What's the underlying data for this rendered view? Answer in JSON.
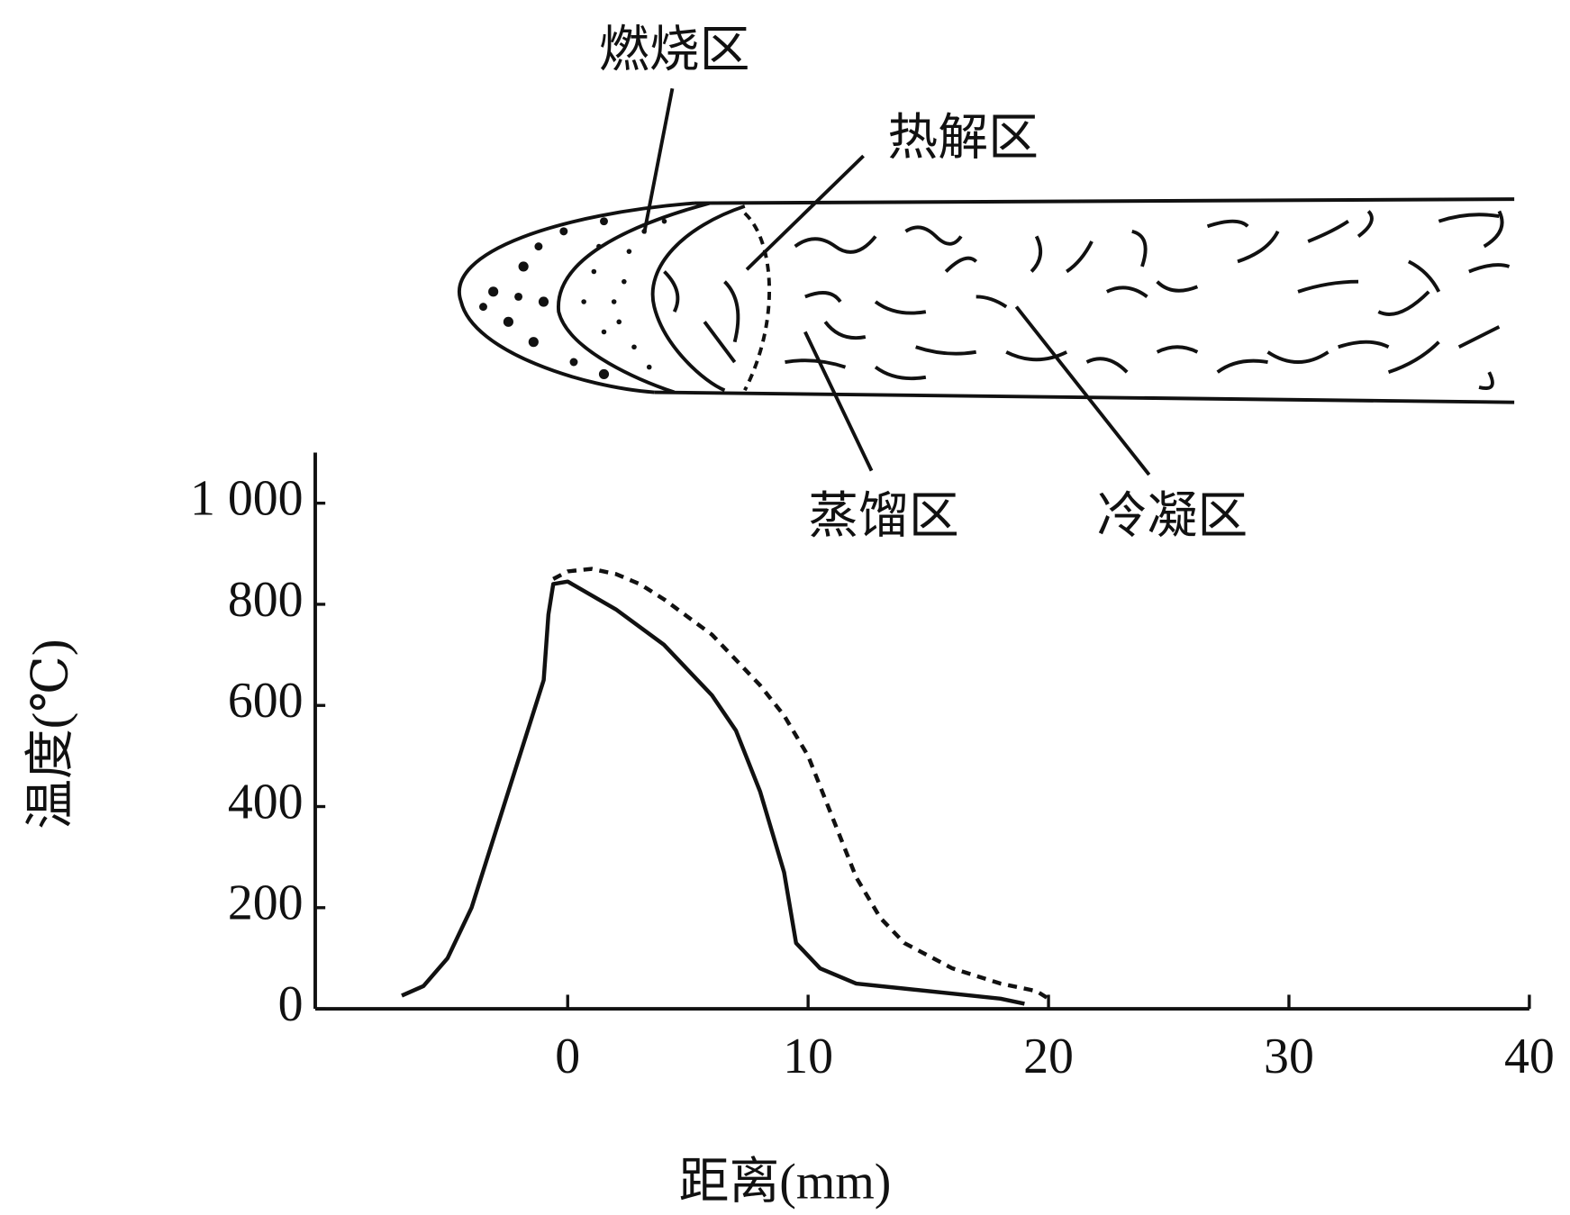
{
  "chart_data": {
    "type": "line",
    "xlabel": "距离(mm)",
    "ylabel": "温度(℃)",
    "annotations": [
      "燃烧区",
      "热解区",
      "蒸馏区",
      "冷凝区"
    ],
    "xlim": [
      -10.5,
      40
    ],
    "ylim": [
      0,
      1100
    ],
    "xticks": [
      0,
      10,
      20,
      30,
      40
    ],
    "yticks": [
      0,
      200,
      400,
      600,
      800,
      {
        "value": 1000,
        "label": "1 000"
      }
    ],
    "series": [
      {
        "color": "#111111",
        "style": "solid",
        "x": [
          -6.9,
          -6,
          -5,
          -4,
          -3,
          -2,
          -1,
          -0.8,
          -0.6,
          0,
          2,
          4,
          6,
          7,
          8,
          9,
          9.5,
          10.5,
          12,
          14,
          16,
          18,
          19
        ],
        "values": [
          26,
          45,
          100,
          200,
          350,
          500,
          650,
          780,
          840,
          845,
          790,
          720,
          620,
          550,
          430,
          270,
          130,
          80,
          50,
          40,
          30,
          20,
          10
        ]
      },
      {
        "color": "#111111",
        "style": "dashed",
        "x": [
          -0.6,
          0,
          1,
          2,
          3,
          4,
          6,
          8,
          9,
          10,
          11,
          12,
          13,
          14,
          16,
          18,
          19.5,
          20
        ],
        "values": [
          850,
          865,
          870,
          860,
          840,
          810,
          740,
          640,
          580,
          500,
          380,
          260,
          180,
          130,
          80,
          50,
          35,
          20
        ]
      }
    ]
  }
}
